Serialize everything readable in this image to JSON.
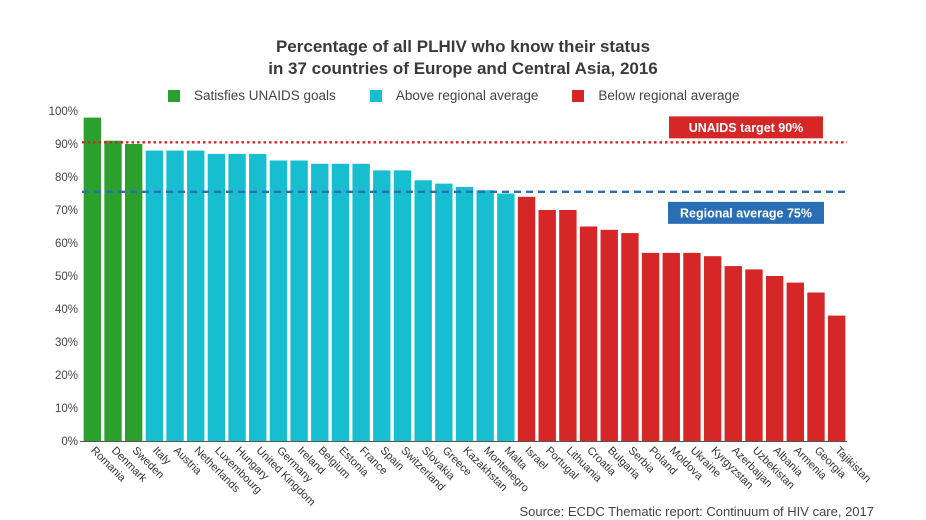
{
  "chart_data": {
    "type": "bar",
    "title_lines": [
      "Percentage of all PLHIV who know their status",
      "in 37 countries of Europe and Central Asia, 2016"
    ],
    "ylim": [
      0,
      100
    ],
    "yticks": [
      0,
      10,
      20,
      30,
      40,
      50,
      60,
      70,
      80,
      90,
      100
    ],
    "ytick_suffix": "%",
    "legend": [
      {
        "label": "Satisfies UNAIDS goals",
        "color": "#2ca02c",
        "group": "goal"
      },
      {
        "label": "Above regional average",
        "color": "#17becf",
        "group": "above"
      },
      {
        "label": "Below regional average",
        "color": "#d62728",
        "group": "below"
      }
    ],
    "categories": [
      "Romania",
      "Denmark",
      "Sweden",
      "Italy",
      "Austria",
      "Netherlands",
      "Luxembourg",
      "Hungary",
      "United Kingdom",
      "Germany",
      "Ireland",
      "Belgium",
      "Estonia",
      "France",
      "Spain",
      "Switzerland",
      "Slovakia",
      "Greece",
      "Kazakhstan",
      "Montenegro",
      "Malta",
      "Israel",
      "Portugal",
      "Lithuania",
      "Croatia",
      "Bulgaria",
      "Serbia",
      "Poland",
      "Moldova",
      "Ukraine",
      "Kyrgyzstan",
      "Azerbaijan",
      "Uzbekistan",
      "Albania",
      "Armenia",
      "Georgia",
      "Tajikistan"
    ],
    "values": [
      98,
      91,
      90,
      88,
      88,
      88,
      87,
      87,
      87,
      85,
      85,
      84,
      84,
      84,
      82,
      82,
      79,
      78,
      77,
      76,
      75,
      74,
      70,
      70,
      65,
      64,
      63,
      57,
      57,
      57,
      56,
      53,
      52,
      50,
      48,
      45,
      38
    ],
    "groups": [
      "goal",
      "goal",
      "goal",
      "above",
      "above",
      "above",
      "above",
      "above",
      "above",
      "above",
      "above",
      "above",
      "above",
      "above",
      "above",
      "above",
      "above",
      "above",
      "above",
      "above",
      "above",
      "below",
      "below",
      "below",
      "below",
      "below",
      "below",
      "below",
      "below",
      "below",
      "below",
      "below",
      "below",
      "below",
      "below",
      "below",
      "below"
    ],
    "reference_lines": [
      {
        "label": "UNAIDS target 90%",
        "value": 90.5,
        "color": "#e02020",
        "style": "dotted",
        "box_color": "#d62728"
      },
      {
        "label": "Regional average 75%",
        "value": 75.5,
        "color": "#2a6fb5",
        "style": "dashed",
        "box_color": "#2a6fb5"
      }
    ],
    "source": "Source: ECDC Thematic report: Continuum of HIV care, 2017"
  }
}
